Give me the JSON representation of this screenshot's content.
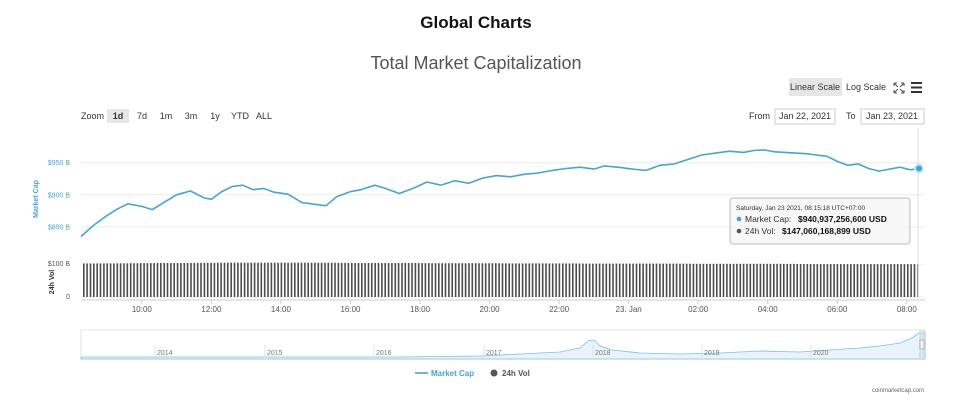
{
  "page_title": "Global Charts",
  "chart_title": "Total Market Capitalization",
  "scale_buttons": {
    "linear": "Linear Scale",
    "log": "Log Scale"
  },
  "zoom": {
    "label": "Zoom",
    "options": [
      "1d",
      "7d",
      "1m",
      "3m",
      "1y",
      "YTD",
      "ALL"
    ],
    "selected": "1d"
  },
  "range": {
    "from_label": "From",
    "from_value": "Jan 22, 2021",
    "to_label": "To",
    "to_value": "Jan 23, 2021"
  },
  "tooltip": {
    "header": "Saturday, Jan 23 2021, 08:15:18 UTC+07:00",
    "market_cap_label": "Market Cap:",
    "market_cap_value": "$940,937,256,600 USD",
    "vol_label": "24h Vol:",
    "vol_value": "$147,060,168,899 USD"
  },
  "legend": {
    "market_cap": "Market Cap",
    "vol": "24h Vol"
  },
  "credit": "coinmarketcap.com",
  "colors": {
    "market_cap": "#4aa3cf",
    "volume": "#555555",
    "button_active": "#e6e6e6"
  },
  "icons": {
    "expand": "expand-icon",
    "menu": "hamburger-menu-icon"
  },
  "chart_data": {
    "type": "line",
    "title": "Total Market Capitalization",
    "ylabel": "Market Cap",
    "y_ticks": [
      "$850 B",
      "$900 B",
      "$950 B"
    ],
    "ylim_billions": [
      800,
      1000
    ],
    "x_ticks": [
      "10:00",
      "12:00",
      "14:00",
      "16:00",
      "18:00",
      "20:00",
      "22:00",
      "23. Jan",
      "02:00",
      "04:00",
      "06:00",
      "08:00"
    ],
    "x_range_hours": [
      8.25,
      32.35
    ],
    "series": [
      {
        "name": "Market Cap",
        "unit": "billion USD",
        "x_hours": [
          8.25,
          8.6,
          9.0,
          9.3,
          9.6,
          10.0,
          10.3,
          10.6,
          11.0,
          11.4,
          11.8,
          12.0,
          12.3,
          12.6,
          12.9,
          13.2,
          13.5,
          13.8,
          14.2,
          14.6,
          15.0,
          15.3,
          15.6,
          16.0,
          16.3,
          16.7,
          17.0,
          17.4,
          17.8,
          18.2,
          18.6,
          19.0,
          19.4,
          19.8,
          20.2,
          20.6,
          21.0,
          21.4,
          21.8,
          22.2,
          22.6,
          23.0,
          23.3,
          23.7,
          24.1,
          24.5,
          24.9,
          25.3,
          25.7,
          26.1,
          26.5,
          26.9,
          27.3,
          27.6,
          27.9,
          28.2,
          28.5,
          28.8,
          29.1,
          29.4,
          29.7,
          30.0,
          30.3,
          30.6,
          30.9,
          31.2,
          31.5,
          31.8,
          32.1,
          32.35
        ],
        "values": [
          835,
          852,
          868,
          878,
          886,
          882,
          877,
          887,
          900,
          906,
          895,
          893,
          905,
          913,
          915,
          908,
          910,
          904,
          901,
          888,
          885,
          883,
          897,
          905,
          908,
          915,
          910,
          902,
          910,
          920,
          915,
          922,
          918,
          926,
          930,
          928,
          932,
          934,
          938,
          941,
          943,
          940,
          945,
          943,
          940,
          938,
          946,
          948,
          955,
          962,
          965,
          968,
          966,
          969,
          970,
          967,
          966,
          965,
          964,
          962,
          960,
          952,
          946,
          948,
          941,
          937,
          940,
          943,
          939,
          941
        ]
      },
      {
        "name": "24h Vol",
        "unit": "billion USD",
        "ylim_billions": [
          0,
          200
        ],
        "y_ticks": [
          "0",
          "$100 B"
        ],
        "values": [
          150,
          150,
          151,
          152,
          152,
          153,
          153,
          153,
          153,
          153,
          152,
          152,
          152,
          151,
          151,
          151,
          150,
          150,
          150,
          149,
          149,
          149,
          149,
          148,
          148,
          148,
          148,
          147,
          147,
          147,
          147,
          147
        ]
      }
    ]
  },
  "navigator": {
    "years": [
      "2014",
      "2015",
      "2016",
      "2017",
      "2018",
      "2019",
      "2020"
    ]
  }
}
